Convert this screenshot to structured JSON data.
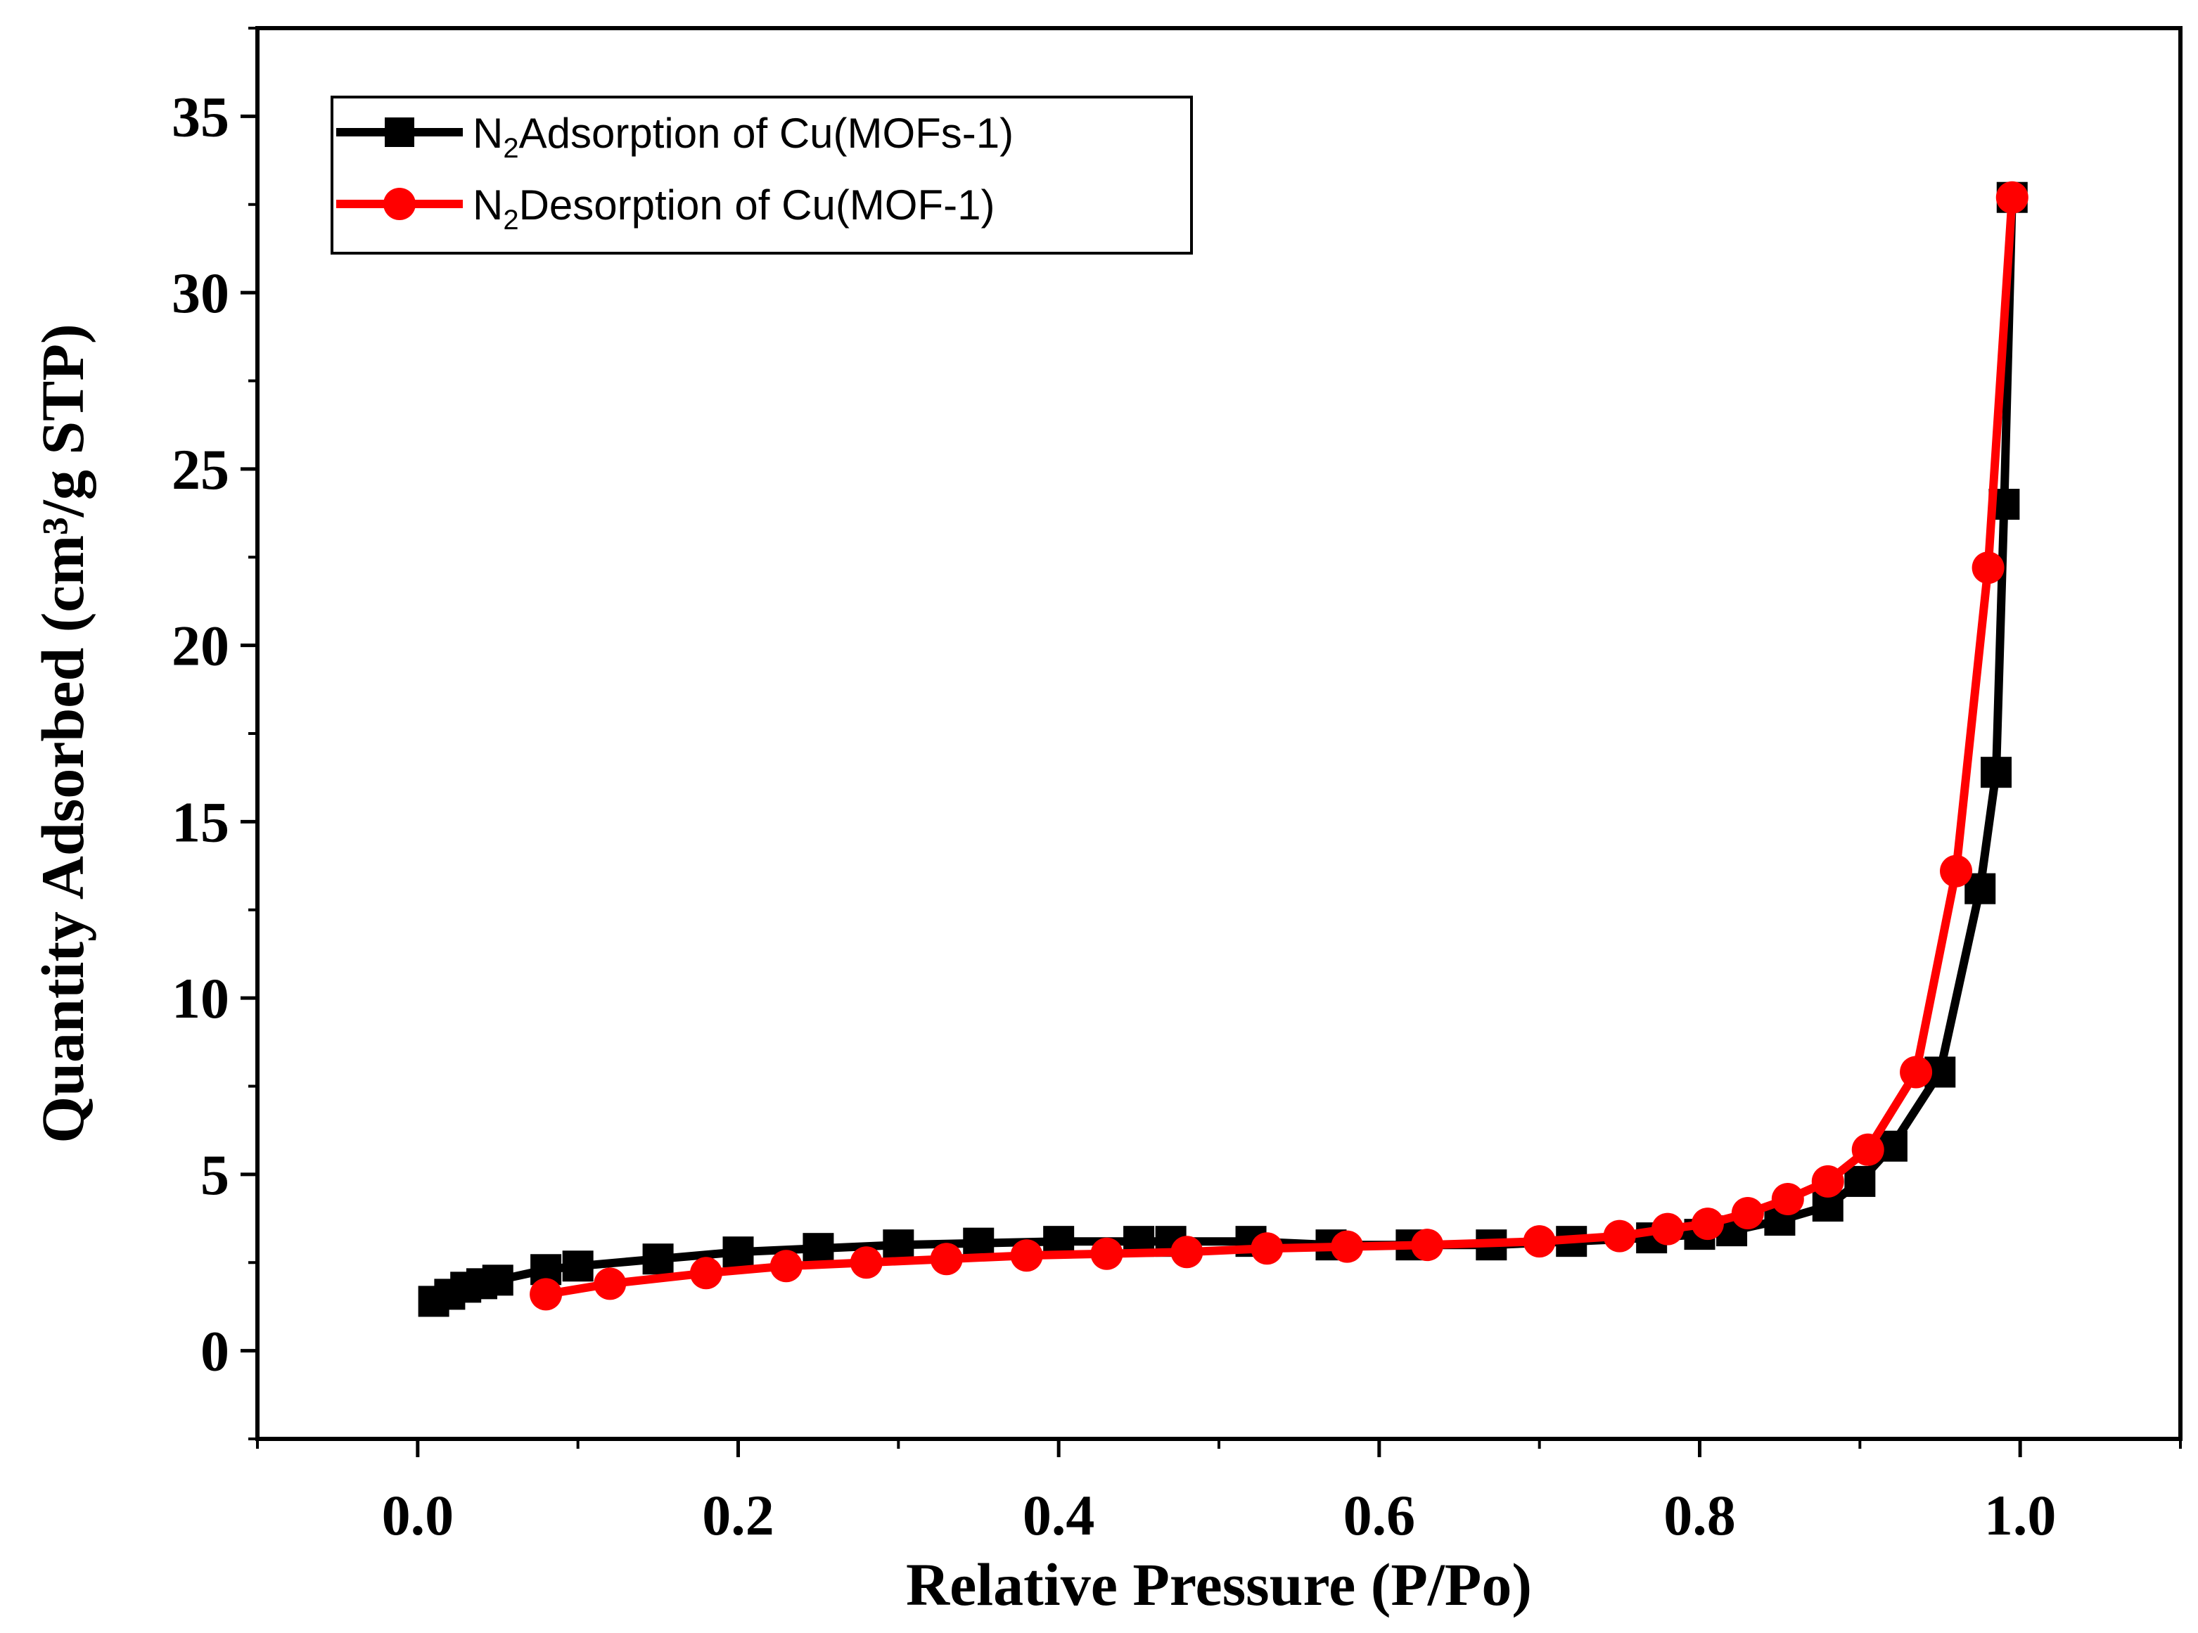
{
  "chart_data": {
    "type": "line",
    "title": "",
    "xlabel": "Relative Pressure (P/Po)",
    "ylabel": "Quantity Adsorbed (cm³/g STP)",
    "xlim": [
      -0.1,
      1.1
    ],
    "ylim": [
      -2.5,
      37.5
    ],
    "xticks": [
      "0.0",
      "0.2",
      "0.4",
      "0.6",
      "0.8",
      "1.0"
    ],
    "xtick_values": [
      0.0,
      0.2,
      0.4,
      0.6,
      0.8,
      1.0
    ],
    "yticks": [
      "0",
      "5",
      "10",
      "15",
      "20",
      "25",
      "30",
      "35"
    ],
    "ytick_values": [
      0,
      5,
      10,
      15,
      20,
      25,
      30,
      35
    ],
    "grid": false,
    "legend_position": "top-left",
    "series": [
      {
        "name": "N2Adsorption of Cu(MOFs-1)",
        "legend_prefix": "N",
        "legend_sub": "2",
        "legend_rest": "Adsorption of Cu(MOFs-1)",
        "color": "#000000",
        "marker": "square",
        "x": [
          0.01,
          0.02,
          0.03,
          0.04,
          0.05,
          0.08,
          0.1,
          0.15,
          0.2,
          0.25,
          0.3,
          0.35,
          0.4,
          0.45,
          0.47,
          0.52,
          0.57,
          0.62,
          0.67,
          0.72,
          0.77,
          0.8,
          0.82,
          0.85,
          0.88,
          0.9,
          0.92,
          0.95,
          0.975,
          0.985,
          0.99,
          0.995
        ],
        "y": [
          1.4,
          1.6,
          1.8,
          1.9,
          2.0,
          2.3,
          2.4,
          2.6,
          2.8,
          2.9,
          3.0,
          3.05,
          3.1,
          3.1,
          3.1,
          3.1,
          3.0,
          3.0,
          3.0,
          3.1,
          3.2,
          3.3,
          3.4,
          3.7,
          4.1,
          4.8,
          5.8,
          7.9,
          13.1,
          16.4,
          24.0,
          32.7
        ]
      },
      {
        "name": "N2Desorption of Cu(MOF-1)",
        "legend_prefix": "N",
        "legend_sub": "2",
        "legend_rest": "Desorption of Cu(MOF-1)",
        "color": "#ff0000",
        "marker": "circle",
        "x": [
          0.995,
          0.98,
          0.96,
          0.935,
          0.905,
          0.88,
          0.855,
          0.83,
          0.805,
          0.78,
          0.75,
          0.7,
          0.63,
          0.58,
          0.53,
          0.48,
          0.43,
          0.38,
          0.33,
          0.28,
          0.23,
          0.18,
          0.12,
          0.08
        ],
        "y": [
          32.7,
          22.2,
          13.6,
          7.9,
          5.7,
          4.8,
          4.3,
          3.9,
          3.6,
          3.45,
          3.25,
          3.1,
          3.0,
          2.95,
          2.9,
          2.8,
          2.75,
          2.7,
          2.6,
          2.5,
          2.4,
          2.2,
          1.9,
          1.6
        ]
      }
    ]
  }
}
